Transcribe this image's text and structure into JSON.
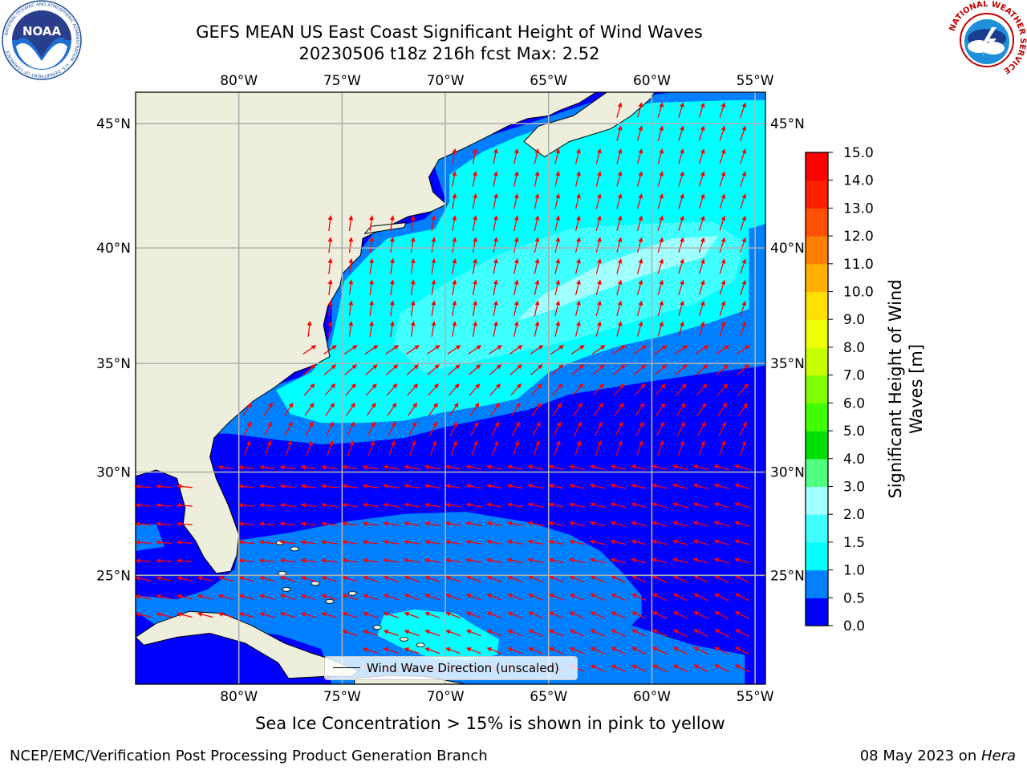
{
  "header": {
    "title_line1": "GEFS MEAN US East Coast Significant Height of Wind Waves",
    "title_line2": "20230506 t18z 216h fcst   Max: 2.52"
  },
  "logos": {
    "left": {
      "name": "noaa-logo",
      "text": "NOAA",
      "ring_text": "NATIONAL OCEANIC AND ATMOSPHERIC ADMINISTRATION · U.S. DEPARTMENT OF COMMERCE"
    },
    "right": {
      "name": "nws-logo",
      "ring_text": "NATIONAL WEATHER SERVICE"
    }
  },
  "map": {
    "lon_labels": [
      "80°W",
      "75°W",
      "70°W",
      "65°W",
      "60°W",
      "55°W"
    ],
    "lat_labels": [
      "45°N",
      "40°N",
      "35°N",
      "30°N",
      "25°N"
    ],
    "legend_label": "Wind Wave Direction (unscaled)",
    "colors": {
      "land": "#eeeedc",
      "band_0_0.5": "#0000ff",
      "band_0.5_1.0": "#0080ff",
      "band_1.0_1.5": "#00ffff",
      "band_1.5_2.0": "#40ffff",
      "band_2.0_3.0": "#a0ffff",
      "arrow": "#ff0000",
      "grid": "#b0b0b0"
    }
  },
  "colorbar": {
    "label": "Significant Height of Wind Waves [m]",
    "label_line1": "Significant Height of Wind",
    "label_line2": "Waves [m]",
    "ticks": [
      "0.0",
      "0.5",
      "1.0",
      "1.5",
      "2.0",
      "3.0",
      "4.0",
      "5.0",
      "6.0",
      "7.0",
      "8.0",
      "9.0",
      "10.0",
      "11.0",
      "12.0",
      "13.0",
      "14.0",
      "15.0"
    ],
    "colors": [
      "#0000ff",
      "#0080ff",
      "#00ffff",
      "#40ffff",
      "#a0ffff",
      "#50ff80",
      "#00e000",
      "#40ff00",
      "#80ff00",
      "#c8ff00",
      "#f0ff00",
      "#ffe000",
      "#ffb000",
      "#ff8000",
      "#ff5000",
      "#ff2000",
      "#ff0000"
    ]
  },
  "chart_data": {
    "type": "heatmap",
    "title": "GEFS MEAN US East Coast Significant Height of Wind Waves",
    "subtitle": "20230506 t18z 216h fcst   Max: 2.52",
    "lon_range": [
      -85,
      -54.5
    ],
    "lat_range": [
      19.5,
      46.2
    ],
    "max_value": 2.52,
    "units": "m",
    "levels": [
      0.0,
      0.5,
      1.0,
      1.5,
      2.0,
      3.0,
      4.0,
      5.0,
      6.0,
      7.0,
      8.0,
      9.0,
      10.0,
      11.0,
      12.0,
      13.0,
      14.0,
      15.0
    ],
    "regions": [
      {
        "range": "2.0-3.0",
        "location": "roughly 38°N 60-65°W"
      },
      {
        "range": "1.0-2.0",
        "location": "35-45°N, 55-76°W"
      },
      {
        "range": "1.0-2.0",
        "location": "around 22°N 67-72°W"
      },
      {
        "range": "0.5-1.0",
        "location": "near shore and 26-30°N band"
      },
      {
        "range": "0.0-0.5",
        "location": "most of 21-33°N"
      }
    ],
    "grid": true
  },
  "footer": {
    "sea_ice_note": "Sea Ice Concentration > 15% is shown in pink to yellow",
    "producer": "NCEP/EMC/Verification Post Processing Product Generation Branch",
    "run_date": "08 May 2023 on ",
    "machine": "Hera"
  }
}
